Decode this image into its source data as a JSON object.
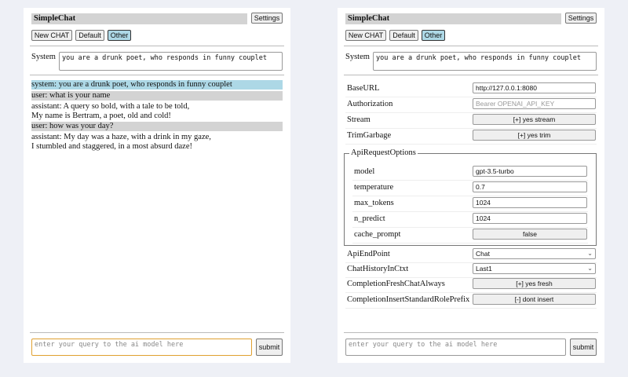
{
  "app_title": "SimpleChat",
  "settings_label": "Settings",
  "session_buttons": [
    "New CHAT",
    "Default",
    "Other"
  ],
  "system_label": "System",
  "system_prompt": "you are a drunk poet, who responds in funny couplet",
  "chat": [
    {
      "role": "system",
      "lines": [
        "system: you are a drunk poet, who responds in funny couplet"
      ]
    },
    {
      "role": "user",
      "lines": [
        "user: what is your name"
      ]
    },
    {
      "role": "assistant",
      "lines": [
        "assistant: A query so bold, with a tale to be told,",
        "My name is Bertram, a poet, old and cold!"
      ]
    },
    {
      "role": "user",
      "lines": [
        "user: how was your day?"
      ]
    },
    {
      "role": "assistant",
      "lines": [
        "assistant: My day was a haze, with a drink in my gaze,",
        "I stumbled and staggered, in a most absurd daze!"
      ]
    }
  ],
  "query_placeholder": "enter your query to the ai model here",
  "submit_label": "submit",
  "settings": {
    "base_url": {
      "label": "BaseURL",
      "value": "http://127.0.0.1:8080"
    },
    "authorization": {
      "label": "Authorization",
      "placeholder": "Bearer OPENAI_API_KEY"
    },
    "stream": {
      "label": "Stream",
      "value": "[+] yes stream"
    },
    "trim_garbage": {
      "label": "TrimGarbage",
      "value": "[+] yes trim"
    },
    "api_request_options": {
      "legend": "ApiRequestOptions",
      "model": {
        "label": "model",
        "value": "gpt-3.5-turbo"
      },
      "temperature": {
        "label": "temperature",
        "value": "0.7"
      },
      "max_tokens": {
        "label": "max_tokens",
        "value": "1024"
      },
      "n_predict": {
        "label": "n_predict",
        "value": "1024"
      },
      "cache_prompt": {
        "label": "cache_prompt",
        "value": "false"
      }
    },
    "api_endpoint": {
      "label": "ApiEndPoint",
      "value": "Chat"
    },
    "chat_history": {
      "label": "ChatHistoryInCtxt",
      "value": "Last1"
    },
    "completion_fresh": {
      "label": "CompletionFreshChatAlways",
      "value": "[+] yes fresh"
    },
    "completion_prefix": {
      "label": "CompletionInsertStandardRolePrefix",
      "value": "[-] dont insert"
    }
  },
  "colors": {
    "system_bg": "#add8e6",
    "user_bg": "#d3d3d3",
    "selected_button": "#add8e6",
    "focus_border": "#e0a030"
  }
}
